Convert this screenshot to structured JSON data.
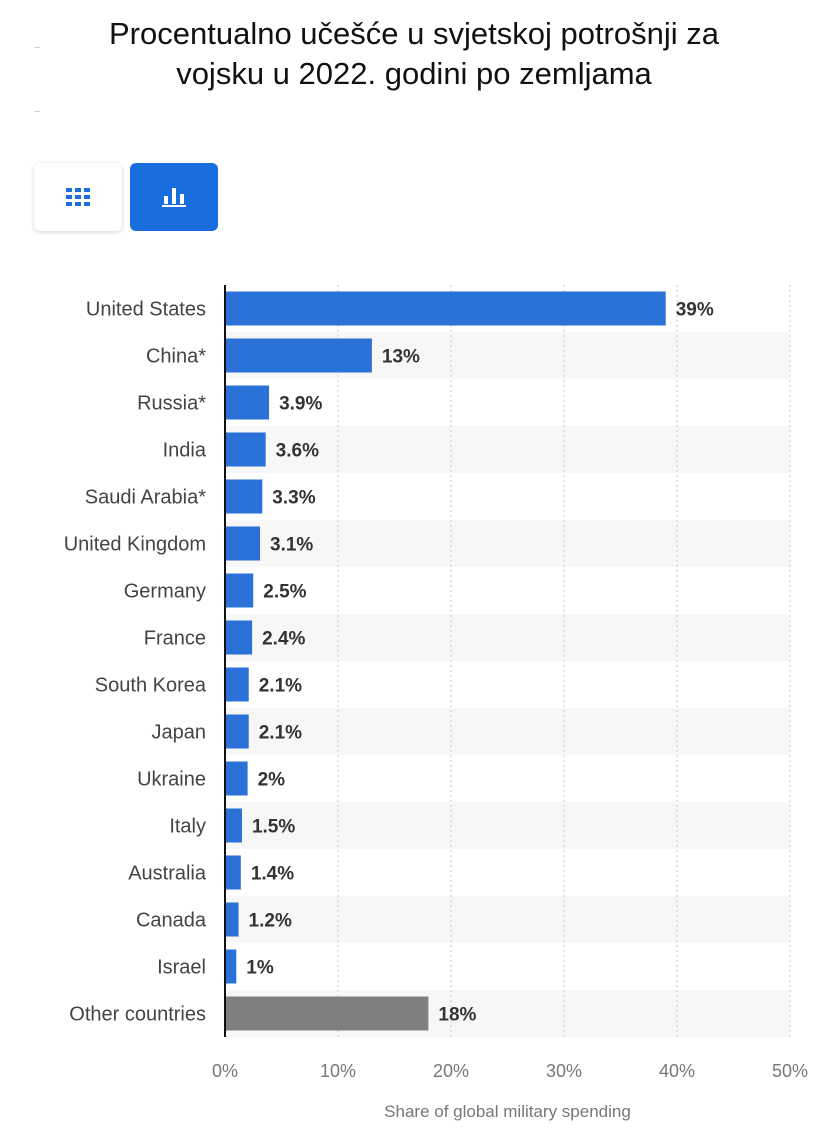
{
  "title": {
    "line1": "Procentualno učešće u svjetskoj potrošnji za",
    "line2": "vojsku u 2022. godini po zemljama"
  },
  "toolbar": {
    "table_icon": "grid-icon",
    "chart_icon": "bar-chart-icon",
    "active_color": "#1a6ddc"
  },
  "chart_data": {
    "type": "bar",
    "orientation": "horizontal",
    "categories": [
      "United States",
      "China*",
      "Russia*",
      "India",
      "Saudi Arabia*",
      "United Kingdom",
      "Germany",
      "France",
      "South Korea",
      "Japan",
      "Ukraine",
      "Italy",
      "Australia",
      "Canada",
      "Israel",
      "Other countries"
    ],
    "values": [
      39,
      13,
      3.9,
      3.6,
      3.3,
      3.1,
      2.5,
      2.4,
      2.1,
      2.1,
      2,
      1.5,
      1.4,
      1.2,
      1,
      18
    ],
    "value_labels": [
      "39%",
      "13%",
      "3.9%",
      "3.6%",
      "3.3%",
      "3.1%",
      "2.5%",
      "2.4%",
      "2.1%",
      "2.1%",
      "2%",
      "1.5%",
      "1.4%",
      "1.2%",
      "1%",
      "18%"
    ],
    "bar_colors": [
      "#2a71d8",
      "#2a71d8",
      "#2a71d8",
      "#2a71d8",
      "#2a71d8",
      "#2a71d8",
      "#2a71d8",
      "#2a71d8",
      "#2a71d8",
      "#2a71d8",
      "#2a71d8",
      "#2a71d8",
      "#2a71d8",
      "#2a71d8",
      "#2a71d8",
      "#7f7f7f"
    ],
    "xlim": [
      0,
      50
    ],
    "xticks": [
      0,
      10,
      20,
      30,
      40,
      50
    ],
    "xtick_labels": [
      "0%",
      "10%",
      "20%",
      "30%",
      "40%",
      "50%"
    ],
    "xlabel": "Share of global military spending",
    "ylabel": "",
    "grid": true,
    "legend": "none"
  }
}
